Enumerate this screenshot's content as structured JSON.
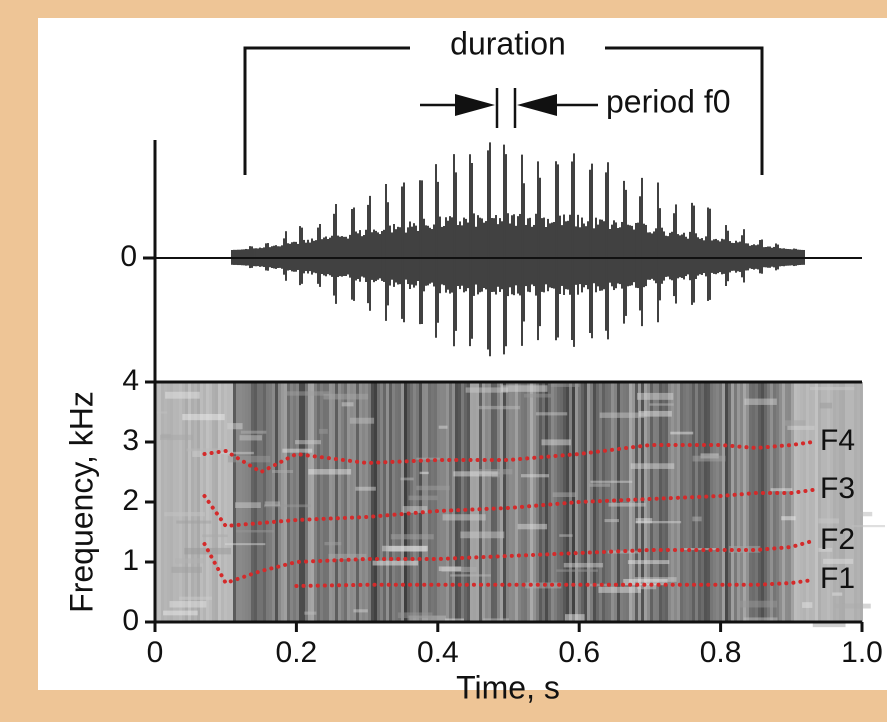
{
  "chart_data": [
    {
      "type": "waveform",
      "yticks": [
        0
      ],
      "annotations": [
        "duration",
        "period f0"
      ]
    },
    {
      "type": "line",
      "xlabel": "Time, s",
      "ylabel": "Frequency, kHz",
      "xlim": [
        0,
        1
      ],
      "xticks": [
        0,
        0.2,
        0.4,
        0.6,
        0.8,
        {
          "value": 1,
          "label": "1.0"
        }
      ],
      "ylim": [
        0,
        4
      ],
      "yticks": [
        0,
        1,
        2,
        3,
        4
      ],
      "x": [
        0.07,
        0.1,
        0.15,
        0.2,
        0.3,
        0.4,
        0.5,
        0.6,
        0.7,
        0.8,
        0.85,
        0.9,
        0.93
      ],
      "series": [
        {
          "name": "F4",
          "color": "#d42a2a",
          "values": [
            2.8,
            2.85,
            2.5,
            2.8,
            2.65,
            2.7,
            2.7,
            2.8,
            2.95,
            2.95,
            2.9,
            2.95,
            3.0
          ]
        },
        {
          "name": "F3",
          "color": "#d42a2a",
          "values": [
            2.1,
            1.6,
            1.65,
            1.7,
            1.75,
            1.85,
            1.9,
            2.0,
            2.05,
            2.1,
            2.15,
            2.15,
            2.2
          ]
        },
        {
          "name": "F2",
          "color": "#d42a2a",
          "values": [
            1.3,
            0.65,
            0.85,
            1.0,
            1.05,
            1.05,
            1.1,
            1.15,
            1.2,
            1.2,
            1.2,
            1.25,
            1.35
          ]
        },
        {
          "name": "F1",
          "color": "#d42a2a",
          "values": [
            0.6,
            null,
            null,
            0.6,
            0.62,
            0.62,
            0.62,
            0.62,
            0.62,
            0.62,
            0.62,
            0.65,
            0.7
          ]
        }
      ]
    }
  ]
}
